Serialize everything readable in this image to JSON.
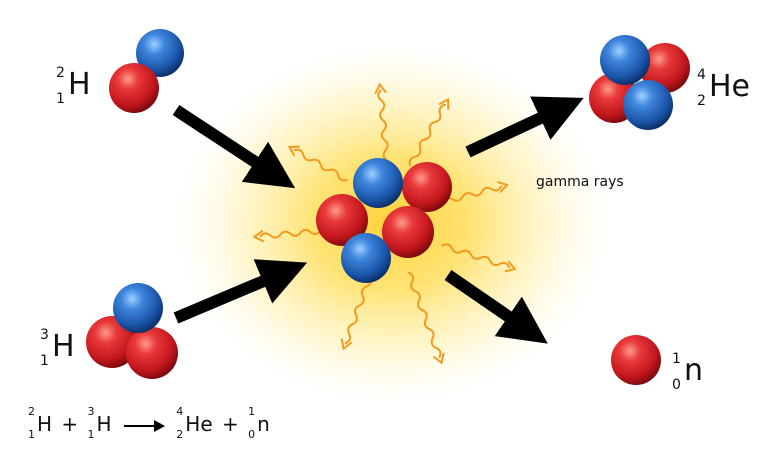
{
  "reactants": [
    {
      "symbol": "H",
      "mass": "2",
      "atomic": "1"
    },
    {
      "symbol": "H",
      "mass": "3",
      "atomic": "1"
    }
  ],
  "products": [
    {
      "symbol": "He",
      "mass": "4",
      "atomic": "2"
    },
    {
      "symbol": "n",
      "mass": "1",
      "atomic": "0"
    }
  ],
  "gamma_label": "gamma rays",
  "equation": {
    "left1": {
      "symbol": "H",
      "mass": "2",
      "atomic": "1"
    },
    "plus1": "+",
    "left2": {
      "symbol": "H",
      "mass": "3",
      "atomic": "1"
    },
    "right1": {
      "symbol": "He",
      "mass": "4",
      "atomic": "2"
    },
    "plus2": "+",
    "right2": {
      "symbol": "n",
      "mass": "1",
      "atomic": "0"
    }
  },
  "colors": {
    "proton": "#d9262c",
    "neutron": "#2a6bc4",
    "glow": "#ffd84a",
    "gamma": "#f39a1e",
    "arrow": "#000000"
  }
}
